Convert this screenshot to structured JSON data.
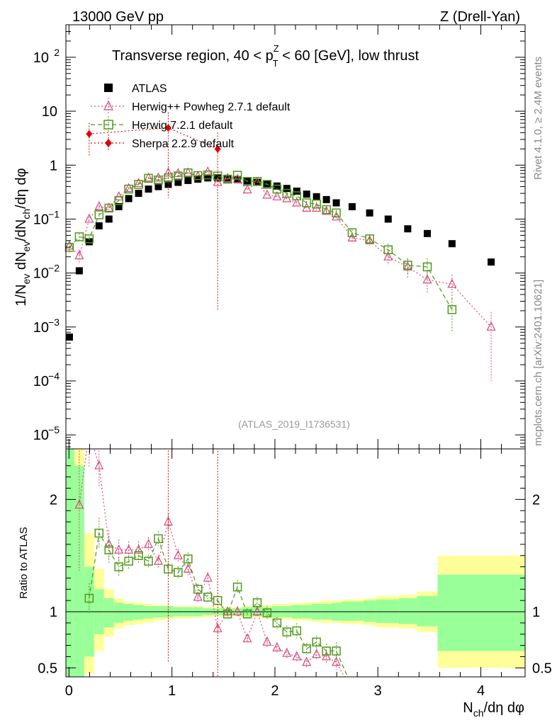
{
  "header": {
    "left": "13000 GeV pp",
    "right": "Z (Drell-Yan)"
  },
  "side": {
    "rivet": "Rivet 4.1.0, ≥ 2.4M events",
    "mcplots": "mcplots.cern.ch [arXiv:2401.10621]"
  },
  "chart_data": {
    "type": "scatter",
    "title": "Transverse region, 40 < pZT < 60 [GeV], low thrust",
    "title_parts": {
      "pre": "Transverse region, 40 < p",
      "sup": "Z",
      "sub": "T",
      "post": " < 60 [GeV], low thrust"
    },
    "analysis_tag": "(ATLAS_2019_I1736531)",
    "ylabel": "1/Nev dNev/dNch/dη dφ",
    "ratio_ylabel": "Ratio to ATLAS",
    "xlabel": "Nch/dη dφ",
    "xlim": [
      -0.03,
      4.43
    ],
    "ylim": [
      5.5e-06,
      400
    ],
    "ylog": true,
    "ratio_ylim": [
      0.42,
      2.45
    ],
    "xticks": [
      0,
      1,
      2,
      3,
      4
    ],
    "xtick_labels": [
      "0",
      "1",
      "2",
      "3",
      "4"
    ],
    "yticks": [
      1e-05,
      0.0001,
      0.001,
      0.01,
      0.1,
      1,
      10,
      100
    ],
    "ytick_labels": [
      {
        "base": "10",
        "exp": "−5"
      },
      {
        "base": "10",
        "exp": "−4"
      },
      {
        "base": "10",
        "exp": "−3"
      },
      {
        "base": "10",
        "exp": "−2"
      },
      {
        "base": "10",
        "exp": "−1"
      },
      {
        "base": "1",
        "exp": ""
      },
      {
        "base": "10",
        "exp": ""
      },
      {
        "base": "10",
        "exp": "2"
      }
    ],
    "ratio_ticks": [
      0.5,
      1,
      2
    ],
    "ratio_tick_labels": [
      "0.5",
      "1",
      "2"
    ],
    "legend_position": "top-left",
    "series": [
      {
        "name": "ATLAS",
        "color": "#000000",
        "marker": "square-filled",
        "x": [
          0.004,
          0.1,
          0.196,
          0.292,
          0.388,
          0.484,
          0.58,
          0.676,
          0.772,
          0.868,
          0.964,
          1.06,
          1.156,
          1.252,
          1.348,
          1.444,
          1.54,
          1.636,
          1.732,
          1.828,
          1.924,
          2.02,
          2.116,
          2.212,
          2.308,
          2.404,
          2.5,
          2.596,
          2.75,
          2.92,
          3.1,
          3.29,
          3.48,
          3.72,
          4.1
        ],
        "y": [
          0.00065,
          0.011,
          0.038,
          0.075,
          0.1,
          0.17,
          0.24,
          0.3,
          0.36,
          0.4,
          0.44,
          0.48,
          0.52,
          0.55,
          0.58,
          0.58,
          0.56,
          0.54,
          0.51,
          0.48,
          0.45,
          0.41,
          0.37,
          0.33,
          0.29,
          0.26,
          0.23,
          0.2,
          0.17,
          0.13,
          0.1,
          0.066,
          0.054,
          0.035,
          0.016
        ]
      },
      {
        "name": "Herwig++ Powheg 2.7.1 default",
        "color": "#d6487e",
        "marker": "triangle-open",
        "x": [
          0.004,
          0.1,
          0.196,
          0.292,
          0.388,
          0.484,
          0.58,
          0.676,
          0.772,
          0.868,
          0.964,
          1.06,
          1.156,
          1.252,
          1.348,
          1.444,
          1.54,
          1.636,
          1.732,
          1.828,
          1.924,
          2.02,
          2.116,
          2.212,
          2.308,
          2.404,
          2.5,
          2.596,
          2.75,
          2.92,
          3.1,
          3.29,
          3.48,
          3.72,
          4.1
        ],
        "y": [
          0.032,
          0.021,
          0.1,
          0.17,
          0.16,
          0.26,
          0.37,
          0.46,
          0.58,
          0.58,
          0.72,
          0.7,
          0.72,
          0.62,
          0.75,
          0.48,
          0.57,
          0.55,
          0.35,
          0.48,
          0.28,
          0.26,
          0.24,
          0.2,
          0.16,
          0.16,
          0.14,
          0.11,
          0.045,
          0.04,
          0.02,
          0.013,
          0.0075,
          0.0062,
          0.001
        ],
        "yerr_rel": [
          0.25,
          0.3,
          0.12,
          0.08,
          0.08,
          0.06,
          0.05,
          0.05,
          0.04,
          0.04,
          0.04,
          0.04,
          0.04,
          0.04,
          0.04,
          0.04,
          0.04,
          0.05,
          0.05,
          0.05,
          0.06,
          0.06,
          0.07,
          0.08,
          0.08,
          0.08,
          0.1,
          0.12,
          0.15,
          0.2,
          0.3,
          0.4,
          0.45,
          0.5,
          0.9
        ],
        "ratio": [
          null,
          1.95,
          2.6,
          2.3,
          1.6,
          1.55,
          1.55,
          1.55,
          1.6,
          1.45,
          1.8,
          1.5,
          1.38,
          1.13,
          1.3,
          0.85,
          1.0,
          1.0,
          0.76,
          1.0,
          0.73,
          0.68,
          0.63,
          0.6,
          0.55,
          0.62,
          0.6,
          0.55,
          0.3,
          0.3,
          0.2,
          0.2,
          0.14,
          0.18,
          0.06
        ]
      },
      {
        "name": "Herwig 7.2.1 default",
        "color": "#4d9a1a",
        "marker": "square-open",
        "x": [
          0.004,
          0.1,
          0.196,
          0.292,
          0.388,
          0.484,
          0.58,
          0.676,
          0.772,
          0.868,
          0.964,
          1.06,
          1.156,
          1.252,
          1.348,
          1.444,
          1.54,
          1.636,
          1.732,
          1.828,
          1.924,
          2.02,
          2.116,
          2.212,
          2.308,
          2.404,
          2.5,
          2.596,
          2.75,
          2.92,
          3.1,
          3.29,
          3.48,
          3.72
        ],
        "y": [
          0.03,
          0.047,
          0.043,
          0.12,
          0.16,
          0.22,
          0.36,
          0.44,
          0.57,
          0.53,
          0.58,
          0.63,
          0.72,
          0.64,
          0.66,
          0.63,
          0.55,
          0.65,
          0.5,
          0.5,
          0.44,
          0.36,
          0.3,
          0.27,
          0.2,
          0.19,
          0.15,
          0.13,
          0.056,
          0.043,
          0.027,
          0.014,
          0.013,
          0.0021
        ],
        "yerr_rel": [
          0.2,
          0.15,
          0.12,
          0.08,
          0.08,
          0.06,
          0.05,
          0.05,
          0.04,
          0.04,
          0.04,
          0.04,
          0.04,
          0.04,
          0.04,
          0.04,
          0.04,
          0.05,
          0.05,
          0.05,
          0.06,
          0.06,
          0.07,
          0.08,
          0.08,
          0.08,
          0.1,
          0.12,
          0.15,
          0.2,
          0.3,
          0.35,
          0.45,
          0.6
        ],
        "ratio": [
          null,
          null,
          1.12,
          1.7,
          1.55,
          1.4,
          1.45,
          1.5,
          1.45,
          1.65,
          1.38,
          1.35,
          1.47,
          1.2,
          1.13,
          1.1,
          0.98,
          1.22,
          0.98,
          1.08,
          0.99,
          0.9,
          0.82,
          0.83,
          0.67,
          0.73,
          0.65,
          0.65,
          0.33,
          0.33,
          0.27,
          0.21,
          0.24,
          0.06
        ]
      },
      {
        "name": "Sherpa 2.2.9 default",
        "color": "#e00000",
        "marker": "diamond-filled",
        "x": [
          0.196,
          0.964,
          1.444
        ],
        "y": [
          3.8,
          4.9,
          2.0
        ],
        "yerr_rel": [
          0.6,
          0.95,
          0.999
        ],
        "ratio": [
          100,
          11,
          3.5
        ]
      }
    ],
    "ratio_bands": {
      "green_lo": [
        0.12,
        0.35,
        0.6,
        0.8,
        0.86,
        0.9,
        0.92,
        0.93,
        0.94,
        0.95,
        0.95,
        0.96,
        0.96,
        0.96,
        0.97,
        0.97,
        0.97,
        0.97,
        0.96,
        0.96,
        0.96,
        0.95,
        0.95,
        0.94,
        0.94,
        0.93,
        0.93,
        0.92,
        0.92,
        0.91,
        0.9,
        0.89,
        0.87,
        0.65
      ],
      "green_hi": [
        3.0,
        2.3,
        1.4,
        1.2,
        1.12,
        1.08,
        1.07,
        1.06,
        1.05,
        1.05,
        1.05,
        1.04,
        1.04,
        1.04,
        1.03,
        1.03,
        1.03,
        1.03,
        1.04,
        1.04,
        1.04,
        1.05,
        1.05,
        1.06,
        1.06,
        1.07,
        1.07,
        1.08,
        1.09,
        1.1,
        1.11,
        1.12,
        1.14,
        1.33
      ],
      "yellow_lo": [
        0.1,
        0.2,
        0.45,
        0.65,
        0.78,
        0.85,
        0.88,
        0.89,
        0.9,
        0.92,
        0.93,
        0.94,
        0.94,
        0.95,
        0.95,
        0.96,
        0.96,
        0.96,
        0.95,
        0.95,
        0.94,
        0.93,
        0.93,
        0.92,
        0.92,
        0.91,
        0.9,
        0.9,
        0.89,
        0.88,
        0.86,
        0.85,
        0.82,
        0.5
      ],
      "yellow_hi": [
        3.0,
        2.5,
        1.7,
        1.38,
        1.2,
        1.12,
        1.09,
        1.08,
        1.07,
        1.06,
        1.06,
        1.05,
        1.05,
        1.05,
        1.04,
        1.04,
        1.04,
        1.04,
        1.05,
        1.05,
        1.06,
        1.07,
        1.07,
        1.08,
        1.08,
        1.09,
        1.1,
        1.1,
        1.11,
        1.12,
        1.14,
        1.15,
        1.18,
        1.5
      ],
      "edges": [
        -0.044,
        0.052,
        0.148,
        0.244,
        0.34,
        0.436,
        0.532,
        0.628,
        0.724,
        0.82,
        0.916,
        1.012,
        1.108,
        1.204,
        1.3,
        1.396,
        1.492,
        1.588,
        1.684,
        1.78,
        1.876,
        1.972,
        2.068,
        2.164,
        2.26,
        2.356,
        2.452,
        2.548,
        2.644,
        2.86,
        2.98,
        3.2,
        3.38,
        3.58,
        4.43
      ]
    }
  }
}
